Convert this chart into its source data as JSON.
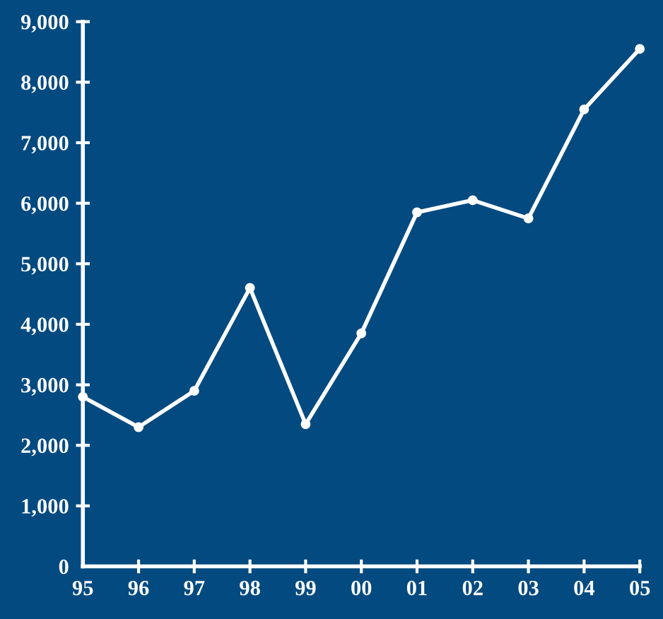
{
  "chart_data": {
    "type": "line",
    "categories": [
      "95",
      "96",
      "97",
      "98",
      "99",
      "00",
      "01",
      "02",
      "03",
      "04",
      "05"
    ],
    "series": [
      {
        "color": "#ffffff",
        "values": [
          2800,
          2300,
          2900,
          4600,
          2350,
          3850,
          5850,
          6050,
          5750,
          7550,
          8550
        ]
      }
    ],
    "ylim": [
      0,
      9000
    ],
    "yticks": [
      0,
      {
        "value": 1000,
        "label": "1,000"
      },
      {
        "value": 2000,
        "label": "2,000"
      },
      {
        "value": 3000,
        "label": "3,000"
      },
      {
        "value": 4000,
        "label": "4,000"
      },
      {
        "value": 5000,
        "label": "5,000"
      },
      {
        "value": 6000,
        "label": "6,000"
      },
      {
        "value": 7000,
        "label": "7,000"
      },
      {
        "value": 8000,
        "label": "8,000"
      },
      {
        "value": 9000,
        "label": "9,000"
      }
    ],
    "grid": false,
    "legend": false,
    "marker": "circle",
    "line_style": "solid"
  }
}
